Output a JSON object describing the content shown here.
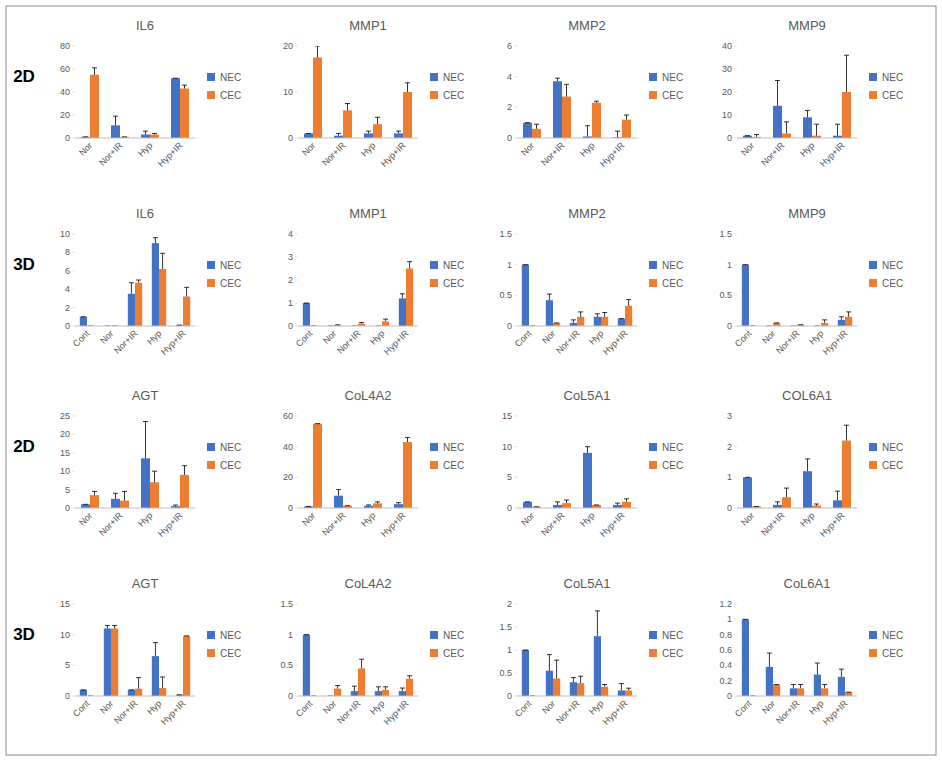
{
  "row_labels": [
    "2D",
    "3D",
    "2D",
    "3D"
  ],
  "chart_data": [
    {
      "type": "bar",
      "title": "IL6",
      "categories": [
        "Nor",
        "Nor+IR",
        "Hyp",
        "Hyp+IR"
      ],
      "series": [
        {
          "name": "NEC",
          "color": "#4472c4",
          "values": [
            1,
            11,
            3,
            52
          ],
          "errors": [
            0,
            8,
            3,
            0
          ]
        },
        {
          "name": "CEC",
          "color": "#ed7d31",
          "values": [
            55,
            1,
            3,
            43
          ],
          "errors": [
            6,
            0,
            1,
            3
          ]
        }
      ],
      "ylim": [
        0,
        80
      ],
      "yticks": [
        0,
        20,
        40,
        60,
        80
      ],
      "grid": false,
      "legend": "right"
    },
    {
      "type": "bar",
      "title": "MMP1",
      "categories": [
        "Nor",
        "Nor+IR",
        "Hyp",
        "Hyp+IR"
      ],
      "series": [
        {
          "name": "NEC",
          "color": "#4472c4",
          "values": [
            1,
            0.5,
            1,
            1
          ],
          "errors": [
            0,
            0.5,
            0.5,
            0.5
          ]
        },
        {
          "name": "CEC",
          "color": "#ed7d31",
          "values": [
            17.5,
            6,
            3,
            10
          ],
          "errors": [
            2.5,
            1.5,
            1.5,
            2
          ]
        }
      ],
      "ylim": [
        0,
        20
      ],
      "yticks": [
        0,
        10,
        20
      ],
      "grid": false,
      "legend": "right"
    },
    {
      "type": "bar",
      "title": "MMP2",
      "categories": [
        "Nor",
        "Nor+IR",
        "Hyp",
        "Hyp+IR"
      ],
      "series": [
        {
          "name": "NEC",
          "color": "#4472c4",
          "values": [
            1,
            3.7,
            0.1,
            0.05
          ],
          "errors": [
            0,
            0.2,
            0.7,
            0.4
          ]
        },
        {
          "name": "CEC",
          "color": "#ed7d31",
          "values": [
            0.6,
            2.7,
            2.3,
            1.2
          ],
          "errors": [
            0.3,
            0.8,
            0.1,
            0.3
          ]
        }
      ],
      "ylim": [
        0,
        6
      ],
      "yticks": [
        0,
        2,
        4,
        6
      ],
      "grid": false,
      "legend": "right"
    },
    {
      "type": "bar",
      "title": "MMP9",
      "categories": [
        "Nor",
        "Nor+IR",
        "Hyp",
        "Hyp+IR"
      ],
      "series": [
        {
          "name": "NEC",
          "color": "#4472c4",
          "values": [
            1,
            14,
            9,
            1
          ],
          "errors": [
            0,
            11,
            3,
            5
          ]
        },
        {
          "name": "CEC",
          "color": "#ed7d31",
          "values": [
            0.5,
            2,
            1,
            20
          ],
          "errors": [
            1,
            5,
            5,
            16
          ]
        }
      ],
      "ylim": [
        0,
        40
      ],
      "yticks": [
        0,
        10,
        20,
        30,
        40
      ],
      "grid": false,
      "legend": "right"
    },
    {
      "type": "bar",
      "title": "IL6",
      "categories": [
        "Cont",
        "Nor",
        "Nor+IR",
        "Hyp",
        "Hyp+IR"
      ],
      "series": [
        {
          "name": "NEC",
          "color": "#4472c4",
          "values": [
            1,
            0,
            3.5,
            9,
            0.1
          ],
          "errors": [
            0,
            0,
            1.2,
            0.6,
            0
          ]
        },
        {
          "name": "CEC",
          "color": "#ed7d31",
          "values": [
            0,
            0,
            4.7,
            6.2,
            3.2
          ],
          "errors": [
            0,
            0,
            0.3,
            1.7,
            1
          ]
        }
      ],
      "ylim": [
        0,
        10
      ],
      "yticks": [
        0,
        2,
        4,
        6,
        8,
        10
      ],
      "grid": false,
      "legend": "right"
    },
    {
      "type": "bar",
      "title": "MMP1",
      "categories": [
        "Cont",
        "Nor",
        "Nor+IR",
        "Hyp",
        "Hyp+IR"
      ],
      "series": [
        {
          "name": "NEC",
          "color": "#4472c4",
          "values": [
            1,
            0,
            0,
            0,
            1.2
          ],
          "errors": [
            0,
            0,
            0,
            0,
            0.2
          ]
        },
        {
          "name": "CEC",
          "color": "#ed7d31",
          "values": [
            0,
            0.05,
            0.1,
            0.2,
            2.5
          ],
          "errors": [
            0,
            0,
            0.05,
            0.1,
            0.3
          ]
        }
      ],
      "ylim": [
        0,
        4
      ],
      "yticks": [
        0,
        1,
        2,
        3,
        4
      ],
      "grid": false,
      "legend": "right"
    },
    {
      "type": "bar",
      "title": "MMP2",
      "categories": [
        "Cont",
        "Nor",
        "Nor+IR",
        "Hyp",
        "Hyp+IR"
      ],
      "series": [
        {
          "name": "NEC",
          "color": "#4472c4",
          "values": [
            1,
            0.42,
            0.05,
            0.15,
            0.12
          ],
          "errors": [
            0,
            0.1,
            0.05,
            0.05,
            0
          ]
        },
        {
          "name": "CEC",
          "color": "#ed7d31",
          "values": [
            0,
            0.05,
            0.15,
            0.15,
            0.33
          ],
          "errors": [
            0,
            0,
            0.08,
            0.07,
            0.1
          ]
        }
      ],
      "ylim": [
        0,
        1.5
      ],
      "yticks": [
        0,
        0.5,
        1,
        1.5
      ],
      "grid": false,
      "legend": "right"
    },
    {
      "type": "bar",
      "title": "MMP9",
      "categories": [
        "Cont",
        "Nor",
        "Nor+IR",
        "Hyp",
        "Hyp+IR"
      ],
      "series": [
        {
          "name": "NEC",
          "color": "#4472c4",
          "values": [
            1,
            0,
            0,
            0,
            0.1
          ],
          "errors": [
            0,
            0,
            0,
            0,
            0.05
          ]
        },
        {
          "name": "CEC",
          "color": "#ed7d31",
          "values": [
            0,
            0.05,
            0.02,
            0.05,
            0.15
          ],
          "errors": [
            0,
            0,
            0,
            0.05,
            0.08
          ]
        }
      ],
      "ylim": [
        0,
        1.5
      ],
      "yticks": [
        0,
        0.5,
        1,
        1.5
      ],
      "grid": false,
      "legend": "right"
    },
    {
      "type": "bar",
      "title": "AGT",
      "categories": [
        "Nor",
        "Nor+IR",
        "Hyp",
        "Hyp+IR"
      ],
      "series": [
        {
          "name": "NEC",
          "color": "#4472c4",
          "values": [
            1,
            2.5,
            13.5,
            0.5
          ],
          "errors": [
            0,
            1.5,
            10,
            0.3
          ]
        },
        {
          "name": "CEC",
          "color": "#ed7d31",
          "values": [
            3.5,
            2,
            7,
            9
          ],
          "errors": [
            1,
            2.5,
            3,
            2.5
          ]
        }
      ],
      "ylim": [
        0,
        25
      ],
      "yticks": [
        0,
        5,
        10,
        15,
        20,
        25
      ],
      "grid": false,
      "legend": "right"
    },
    {
      "type": "bar",
      "title": "CoL4A2",
      "categories": [
        "Nor",
        "Nor+IR",
        "Hyp",
        "Hyp+IR"
      ],
      "series": [
        {
          "name": "NEC",
          "color": "#4472c4",
          "values": [
            1,
            8,
            1.5,
            2.5
          ],
          "errors": [
            0,
            4,
            0.5,
            1
          ]
        },
        {
          "name": "CEC",
          "color": "#ed7d31",
          "values": [
            55,
            1.5,
            3,
            43
          ],
          "errors": [
            0,
            0,
            1,
            3
          ]
        }
      ],
      "ylim": [
        0,
        60
      ],
      "yticks": [
        0,
        20,
        40,
        60
      ],
      "grid": false,
      "legend": "right"
    },
    {
      "type": "bar",
      "title": "CoL5A1",
      "categories": [
        "Nor",
        "Nor+IR",
        "Hyp",
        "Hyp+IR"
      ],
      "series": [
        {
          "name": "NEC",
          "color": "#4472c4",
          "values": [
            1,
            0.5,
            9,
            0.5
          ],
          "errors": [
            0,
            0.5,
            1,
            0.3
          ]
        },
        {
          "name": "CEC",
          "color": "#ed7d31",
          "values": [
            0.2,
            0.8,
            0.5,
            1
          ],
          "errors": [
            0,
            0.5,
            0,
            0.5
          ]
        }
      ],
      "ylim": [
        0,
        15
      ],
      "yticks": [
        0,
        5,
        10,
        15
      ],
      "grid": false,
      "legend": "right"
    },
    {
      "type": "bar",
      "title": "COL6A1",
      "categories": [
        "Nor",
        "Nor+IR",
        "Hyp",
        "Hyp+IR"
      ],
      "series": [
        {
          "name": "NEC",
          "color": "#4472c4",
          "values": [
            1,
            0.1,
            1.2,
            0.25
          ],
          "errors": [
            0,
            0.1,
            0.4,
            0.3
          ]
        },
        {
          "name": "CEC",
          "color": "#ed7d31",
          "values": [
            0.05,
            0.35,
            0.08,
            2.2
          ],
          "errors": [
            0,
            0.3,
            0.05,
            0.5
          ]
        }
      ],
      "ylim": [
        0,
        3
      ],
      "yticks": [
        0,
        1,
        2,
        3
      ],
      "grid": false,
      "legend": "right"
    },
    {
      "type": "bar",
      "title": "AGT",
      "categories": [
        "Cont",
        "Nor",
        "Nor+IR",
        "Hyp",
        "Hyp+IR"
      ],
      "series": [
        {
          "name": "NEC",
          "color": "#4472c4",
          "values": [
            1,
            11,
            1,
            6.5,
            0.2
          ],
          "errors": [
            0,
            0.5,
            0,
            2.2,
            0
          ]
        },
        {
          "name": "CEC",
          "color": "#ed7d31",
          "values": [
            0,
            11,
            1.2,
            1.3,
            9.8
          ],
          "errors": [
            0,
            0.5,
            1.8,
            1.8,
            0
          ]
        }
      ],
      "ylim": [
        0,
        15
      ],
      "yticks": [
        0,
        5,
        10,
        15
      ],
      "grid": false,
      "legend": "right"
    },
    {
      "type": "bar",
      "title": "CoL4A2",
      "categories": [
        "Cont",
        "Nor",
        "Nor+IR",
        "Hyp",
        "Hyp+IR"
      ],
      "series": [
        {
          "name": "NEC",
          "color": "#4472c4",
          "values": [
            1,
            0,
            0.08,
            0.08,
            0.08
          ],
          "errors": [
            0,
            0,
            0.08,
            0.07,
            0.05
          ]
        },
        {
          "name": "CEC",
          "color": "#ed7d31",
          "values": [
            0,
            0.12,
            0.45,
            0.1,
            0.28
          ],
          "errors": [
            0,
            0.05,
            0.15,
            0.05,
            0.05
          ]
        }
      ],
      "ylim": [
        0,
        1.5
      ],
      "yticks": [
        0,
        0.5,
        1,
        1.5
      ],
      "grid": false,
      "legend": "right"
    },
    {
      "type": "bar",
      "title": "CoL5A1",
      "categories": [
        "Cont",
        "Nor",
        "Nor+IR",
        "Hyp",
        "Hyp+IR"
      ],
      "series": [
        {
          "name": "NEC",
          "color": "#4472c4",
          "values": [
            1,
            0.55,
            0.3,
            1.3,
            0.12
          ],
          "errors": [
            0,
            0.35,
            0.1,
            0.55,
            0.15
          ]
        },
        {
          "name": "CEC",
          "color": "#ed7d31",
          "values": [
            0,
            0.38,
            0.28,
            0.2,
            0.12
          ],
          "errors": [
            0,
            0.4,
            0.15,
            0.05,
            0.05
          ]
        }
      ],
      "ylim": [
        0,
        2
      ],
      "yticks": [
        0,
        0.5,
        1,
        1.5,
        2
      ],
      "grid": false,
      "legend": "right"
    },
    {
      "type": "bar",
      "title": "CoL6A1",
      "categories": [
        "Cont",
        "Nor",
        "Nor+IR",
        "Hyp",
        "Hyp+IR"
      ],
      "series": [
        {
          "name": "NEC",
          "color": "#4472c4",
          "values": [
            1,
            0.38,
            0.1,
            0.28,
            0.25
          ],
          "errors": [
            0,
            0.18,
            0.05,
            0.15,
            0.1
          ]
        },
        {
          "name": "CEC",
          "color": "#ed7d31",
          "values": [
            0,
            0.15,
            0.1,
            0.1,
            0.05
          ],
          "errors": [
            0,
            0,
            0.05,
            0.05,
            0
          ]
        }
      ],
      "ylim": [
        0,
        1.2
      ],
      "yticks": [
        0,
        0.2,
        0.4,
        0.6,
        0.8,
        1,
        1.2
      ],
      "grid": false,
      "legend": "right"
    }
  ]
}
